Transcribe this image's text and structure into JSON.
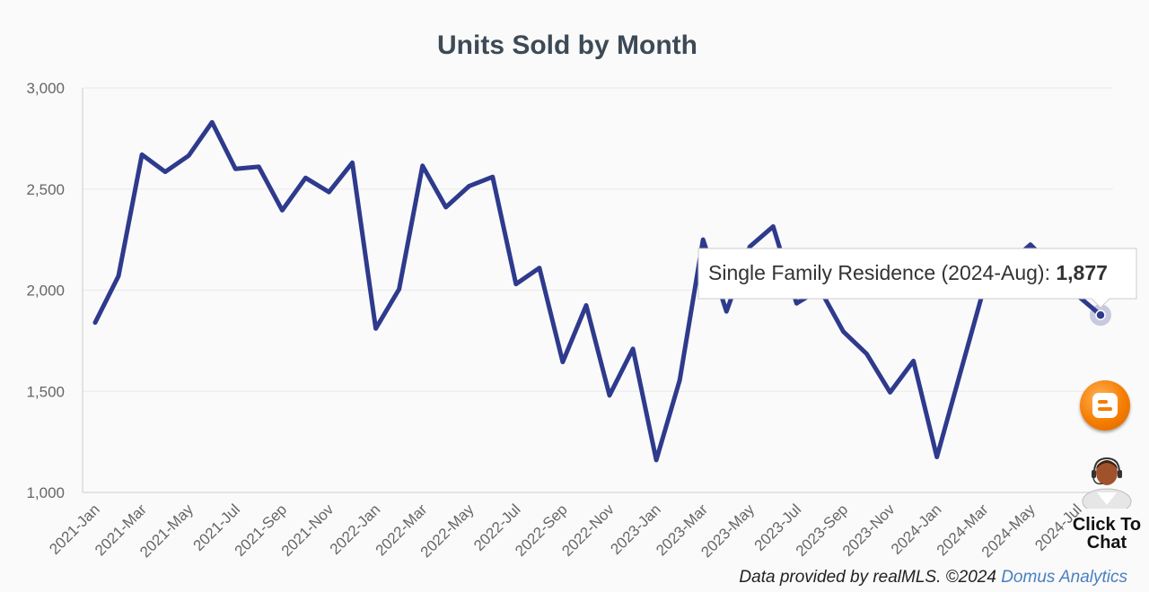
{
  "chart_data": {
    "type": "line",
    "title": "Units Sold by Month",
    "xlabel": "",
    "ylabel": "",
    "ylim": [
      1000,
      3000
    ],
    "yticks": [
      1000,
      1500,
      2000,
      2500,
      3000
    ],
    "ytick_labels": [
      "1,000",
      "1,500",
      "2,000",
      "2,500",
      "3,000"
    ],
    "grid": true,
    "x": [
      "2021-Jan",
      "2021-Feb",
      "2021-Mar",
      "2021-Apr",
      "2021-May",
      "2021-Jun",
      "2021-Jul",
      "2021-Aug",
      "2021-Sep",
      "2021-Oct",
      "2021-Nov",
      "2021-Dec",
      "2022-Jan",
      "2022-Feb",
      "2022-Mar",
      "2022-Apr",
      "2022-May",
      "2022-Jun",
      "2022-Jul",
      "2022-Aug",
      "2022-Sep",
      "2022-Oct",
      "2022-Nov",
      "2022-Dec",
      "2023-Jan",
      "2023-Feb",
      "2023-Mar",
      "2023-Apr",
      "2023-May",
      "2023-Jun",
      "2023-Jul",
      "2023-Aug",
      "2023-Sep",
      "2023-Oct",
      "2023-Nov",
      "2023-Dec",
      "2024-Jan",
      "2024-Feb",
      "2024-Mar",
      "2024-Apr",
      "2024-May",
      "2024-Jun",
      "2024-Jul",
      "2024-Aug"
    ],
    "xtick_labels": [
      "2021-Jan",
      "2021-Mar",
      "2021-May",
      "2021-Jul",
      "2021-Sep",
      "2021-Nov",
      "2022-Jan",
      "2022-Mar",
      "2022-May",
      "2022-Jul",
      "2022-Sep",
      "2022-Nov",
      "2023-Jan",
      "2023-Mar",
      "2023-May",
      "2023-Jul",
      "2023-Sep",
      "2023-Nov",
      "2024-Jan",
      "2024-Mar",
      "2024-May",
      "2024-Jul"
    ],
    "series": [
      {
        "name": "Single Family Residence",
        "color": "#2e3a8c",
        "values": [
          1840,
          2070,
          2670,
          2585,
          2665,
          2830,
          2600,
          2610,
          2395,
          2555,
          2485,
          2630,
          1810,
          2005,
          2615,
          2410,
          2515,
          2560,
          2030,
          2110,
          1645,
          1925,
          1480,
          1710,
          1160,
          1555,
          2250,
          1895,
          2215,
          2315,
          1935,
          2005,
          1795,
          1685,
          1495,
          1650,
          1175,
          1590,
          2005,
          2125,
          2225,
          2110,
          1975,
          1877
        ]
      }
    ],
    "tooltip": {
      "label": "Single Family Residence (2024-Aug): ",
      "value": "1,877"
    }
  },
  "widgets": {
    "blogger_icon": "blogger-icon",
    "chat_label_line1": "Click To",
    "chat_label_line2": "Chat"
  },
  "footer": {
    "text": "Data provided by realMLS.  ©2024 ",
    "link": "Domus Analytics"
  }
}
